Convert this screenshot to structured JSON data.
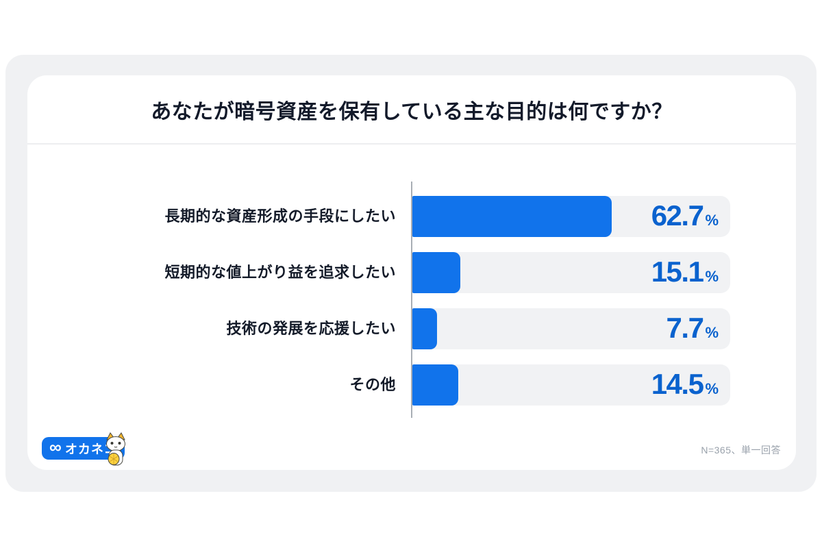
{
  "card": {
    "title": "あなたが暗号資産を保有している主な目的は何ですか？",
    "footer": {
      "brand": {
        "icon": "∞",
        "name": "オカネコ"
      },
      "note": "N=365、単一回答"
    }
  },
  "colors": {
    "bar": "#1173EB",
    "track": "#F1F2F4",
    "value_text": "#0A62CE",
    "frame_background": "#F0F1F3",
    "axis_line": "#A8AEB5",
    "title_text": "#131A2A"
  },
  "chart_data": {
    "type": "bar",
    "orientation": "horizontal",
    "title": "あなたが暗号資産を保有している主な目的は何ですか？",
    "categories": [
      "長期的な資産形成の手段にしたい",
      "短期的な値上がり益を追求したい",
      "技術の発展を応援したい",
      "その他"
    ],
    "values": [
      62.7,
      15.1,
      7.7,
      14.5
    ],
    "unit": "%",
    "xlim": [
      0,
      100
    ],
    "grid": false,
    "legend": false,
    "note": "N=365、単一回答"
  }
}
